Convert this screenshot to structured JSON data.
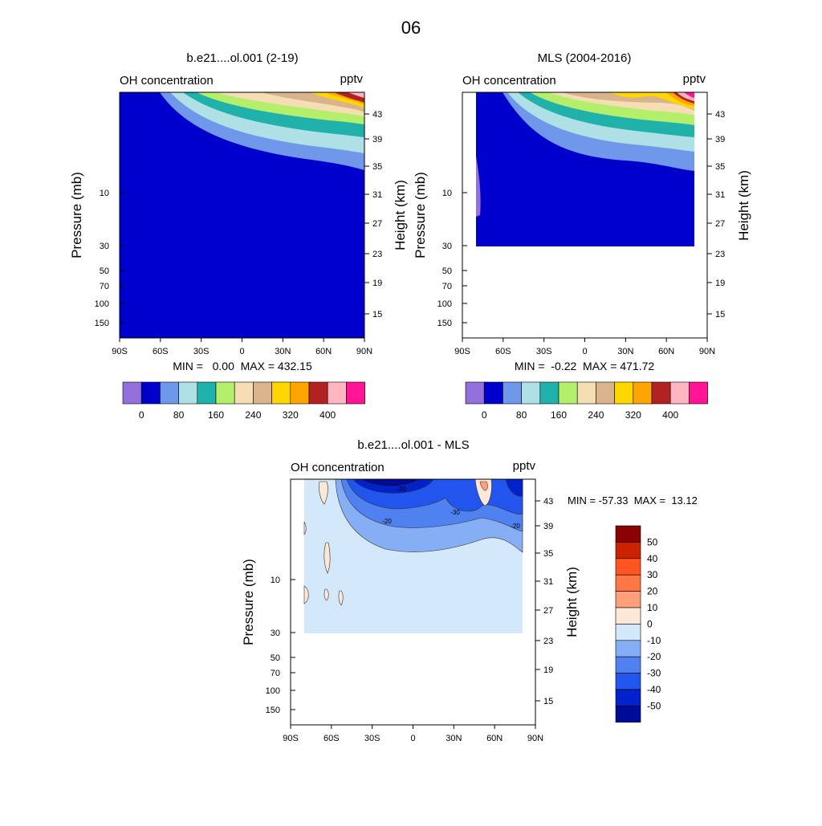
{
  "figure_title": "06",
  "chart_data": [
    {
      "type": "contour",
      "title": "b.e21....ol.001 (2-19)",
      "subtitle_left": "OH concentration",
      "subtitle_right": "pptv",
      "ylabel": "Pressure (mb)",
      "ylabel_right": "Height (km)",
      "x_ticks": [
        "90S",
        "60S",
        "30S",
        "0",
        "30N",
        "60N",
        "90N"
      ],
      "y_ticks": [
        "10",
        "30",
        "50",
        "70",
        "100",
        "150"
      ],
      "y_ticks_right": [
        "43",
        "39",
        "35",
        "31",
        "27",
        "23",
        "19",
        "15"
      ],
      "min_max": "MIN =   0.00  MAX = 432.15",
      "colorbar_labels": [
        "0",
        "80",
        "160",
        "240",
        "320",
        "400"
      ],
      "colorbar_levels": [
        0,
        40,
        80,
        120,
        160,
        200,
        240,
        280,
        320,
        360,
        400
      ],
      "colorbar_colors": [
        "#9370db",
        "#0000cd",
        "#6f97ea",
        "#aee0e5",
        "#20b2aa",
        "#b4ef6b",
        "#f5deb3",
        "#d9b38c",
        "#ffd700",
        "#ffa500",
        "#b22222",
        "#ffb6c1",
        "#ff1493"
      ]
    },
    {
      "type": "contour",
      "title": "MLS (2004-2016)",
      "subtitle_left": "OH concentration",
      "subtitle_right": "pptv",
      "ylabel": "Pressure (mb)",
      "ylabel_right": "Height (km)",
      "x_ticks": [
        "90S",
        "60S",
        "30S",
        "0",
        "30N",
        "60N",
        "90N"
      ],
      "y_ticks": [
        "10",
        "30",
        "50",
        "70",
        "100",
        "150"
      ],
      "y_ticks_right": [
        "43",
        "39",
        "35",
        "31",
        "27",
        "23",
        "19",
        "15"
      ],
      "min_max": "MIN =  -0.22  MAX = 471.72",
      "colorbar_labels": [
        "0",
        "80",
        "160",
        "240",
        "320",
        "400"
      ],
      "colorbar_levels": [
        0,
        40,
        80,
        120,
        160,
        200,
        240,
        280,
        320,
        360,
        400
      ],
      "colorbar_colors": [
        "#9370db",
        "#0000cd",
        "#6f97ea",
        "#aee0e5",
        "#20b2aa",
        "#b4ef6b",
        "#f5deb3",
        "#d9b38c",
        "#ffd700",
        "#ffa500",
        "#b22222",
        "#ffb6c1",
        "#ff1493"
      ]
    },
    {
      "type": "contour",
      "title": "b.e21....ol.001 - MLS",
      "subtitle_left": "OH concentration",
      "subtitle_right": "pptv",
      "ylabel": "Pressure (mb)",
      "ylabel_right": "Height (km)",
      "x_ticks": [
        "90S",
        "60S",
        "30S",
        "0",
        "30N",
        "60N",
        "90N"
      ],
      "y_ticks": [
        "10",
        "30",
        "50",
        "70",
        "100",
        "150"
      ],
      "y_ticks_right": [
        "43",
        "39",
        "35",
        "31",
        "27",
        "23",
        "19",
        "15"
      ],
      "min_max": "MIN = -57.33  MAX =  13.12",
      "contour_labels": [
        "-20",
        "-20",
        "-30",
        "-20"
      ],
      "colorbar_labels": [
        "50",
        "40",
        "30",
        "20",
        "10",
        "0",
        "-10",
        "-20",
        "-30",
        "-40",
        "-50"
      ],
      "colorbar_colors": [
        "#8b0000",
        "#cc2200",
        "#ff5522",
        "#ff7744",
        "#ffa07a",
        "#fde8d8",
        "#d4e8fb",
        "#86aef5",
        "#4f82f0",
        "#2255ee",
        "#0022cc",
        "#000a99"
      ]
    }
  ]
}
